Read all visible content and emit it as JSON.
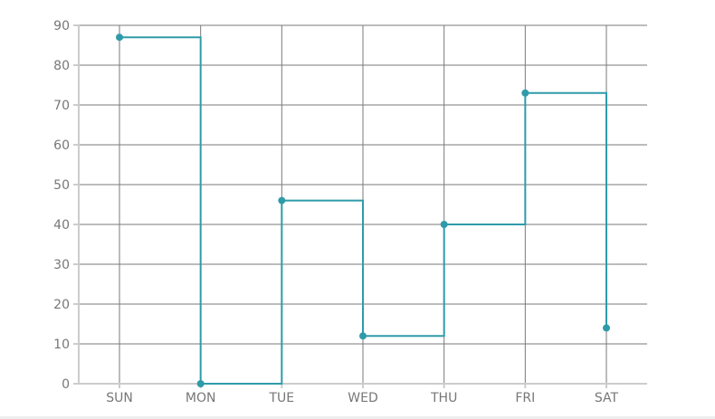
{
  "chart_data": {
    "type": "line",
    "step": "after",
    "categories": [
      "SUN",
      "MON",
      "TUE",
      "WED",
      "THU",
      "FRI",
      "SAT"
    ],
    "values": [
      87,
      0,
      46,
      12,
      40,
      73,
      14
    ],
    "ylim": [
      0,
      90
    ],
    "yticks": [
      0,
      10,
      20,
      30,
      40,
      50,
      60,
      70,
      80,
      90
    ],
    "grid": true,
    "title": "",
    "xlabel": "",
    "ylabel": "",
    "colors": {
      "series": "#2f9ba9",
      "grid": "#7a7a7a",
      "axis": "#cccccc",
      "text": "#777777"
    }
  }
}
